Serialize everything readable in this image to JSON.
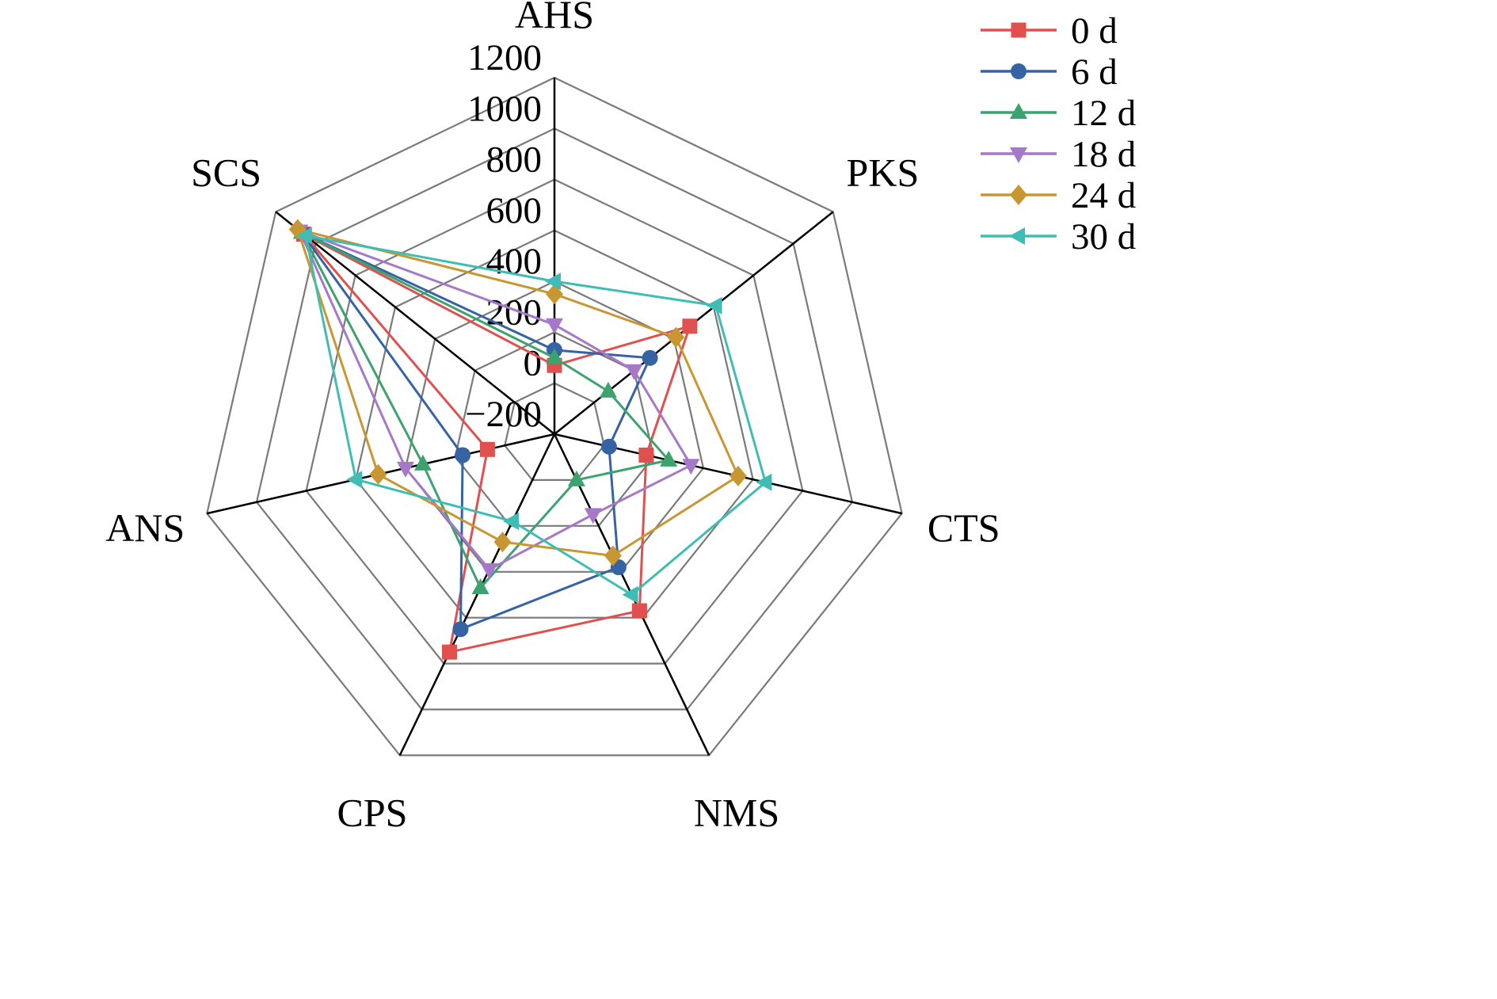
{
  "chart_data": {
    "type": "radar",
    "title": "",
    "axes": [
      "AHS",
      "PKS",
      "CTS",
      "NMS",
      "CPS",
      "ANS",
      "SCS"
    ],
    "radial_ticks": [
      -200,
      0,
      200,
      400,
      600,
      800,
      1000,
      1200
    ],
    "rlim": [
      -200,
      1200
    ],
    "grid": true,
    "grid_color": "#7a7a7a",
    "axis_color": "#000000",
    "legend_position": "top-right",
    "series": [
      {
        "name": "0 d",
        "color": "#e0504e",
        "marker": "square",
        "values": [
          70,
          480,
          170,
          570,
          750,
          70,
          1060
        ]
      },
      {
        "name": "6 d",
        "color": "#3563a4",
        "marker": "circle",
        "values": [
          130,
          280,
          20,
          380,
          650,
          170,
          1070
        ]
      },
      {
        "name": "12 d",
        "color": "#3ca36f",
        "marker": "triangle-up",
        "values": [
          100,
          70,
          260,
          0,
          470,
          330,
          1070
        ]
      },
      {
        "name": "18 d",
        "color": "#a678c8",
        "marker": "triangle-down",
        "values": [
          230,
          200,
          350,
          150,
          390,
          400,
          1080
        ]
      },
      {
        "name": "24 d",
        "color": "#c89732",
        "marker": "diamond",
        "values": [
          350,
          410,
          540,
          330,
          270,
          510,
          1090
        ]
      },
      {
        "name": "30 d",
        "color": "#3fbdb5",
        "marker": "triangle-left",
        "values": [
          400,
          610,
          650,
          500,
          180,
          600,
          1050
        ]
      }
    ]
  }
}
